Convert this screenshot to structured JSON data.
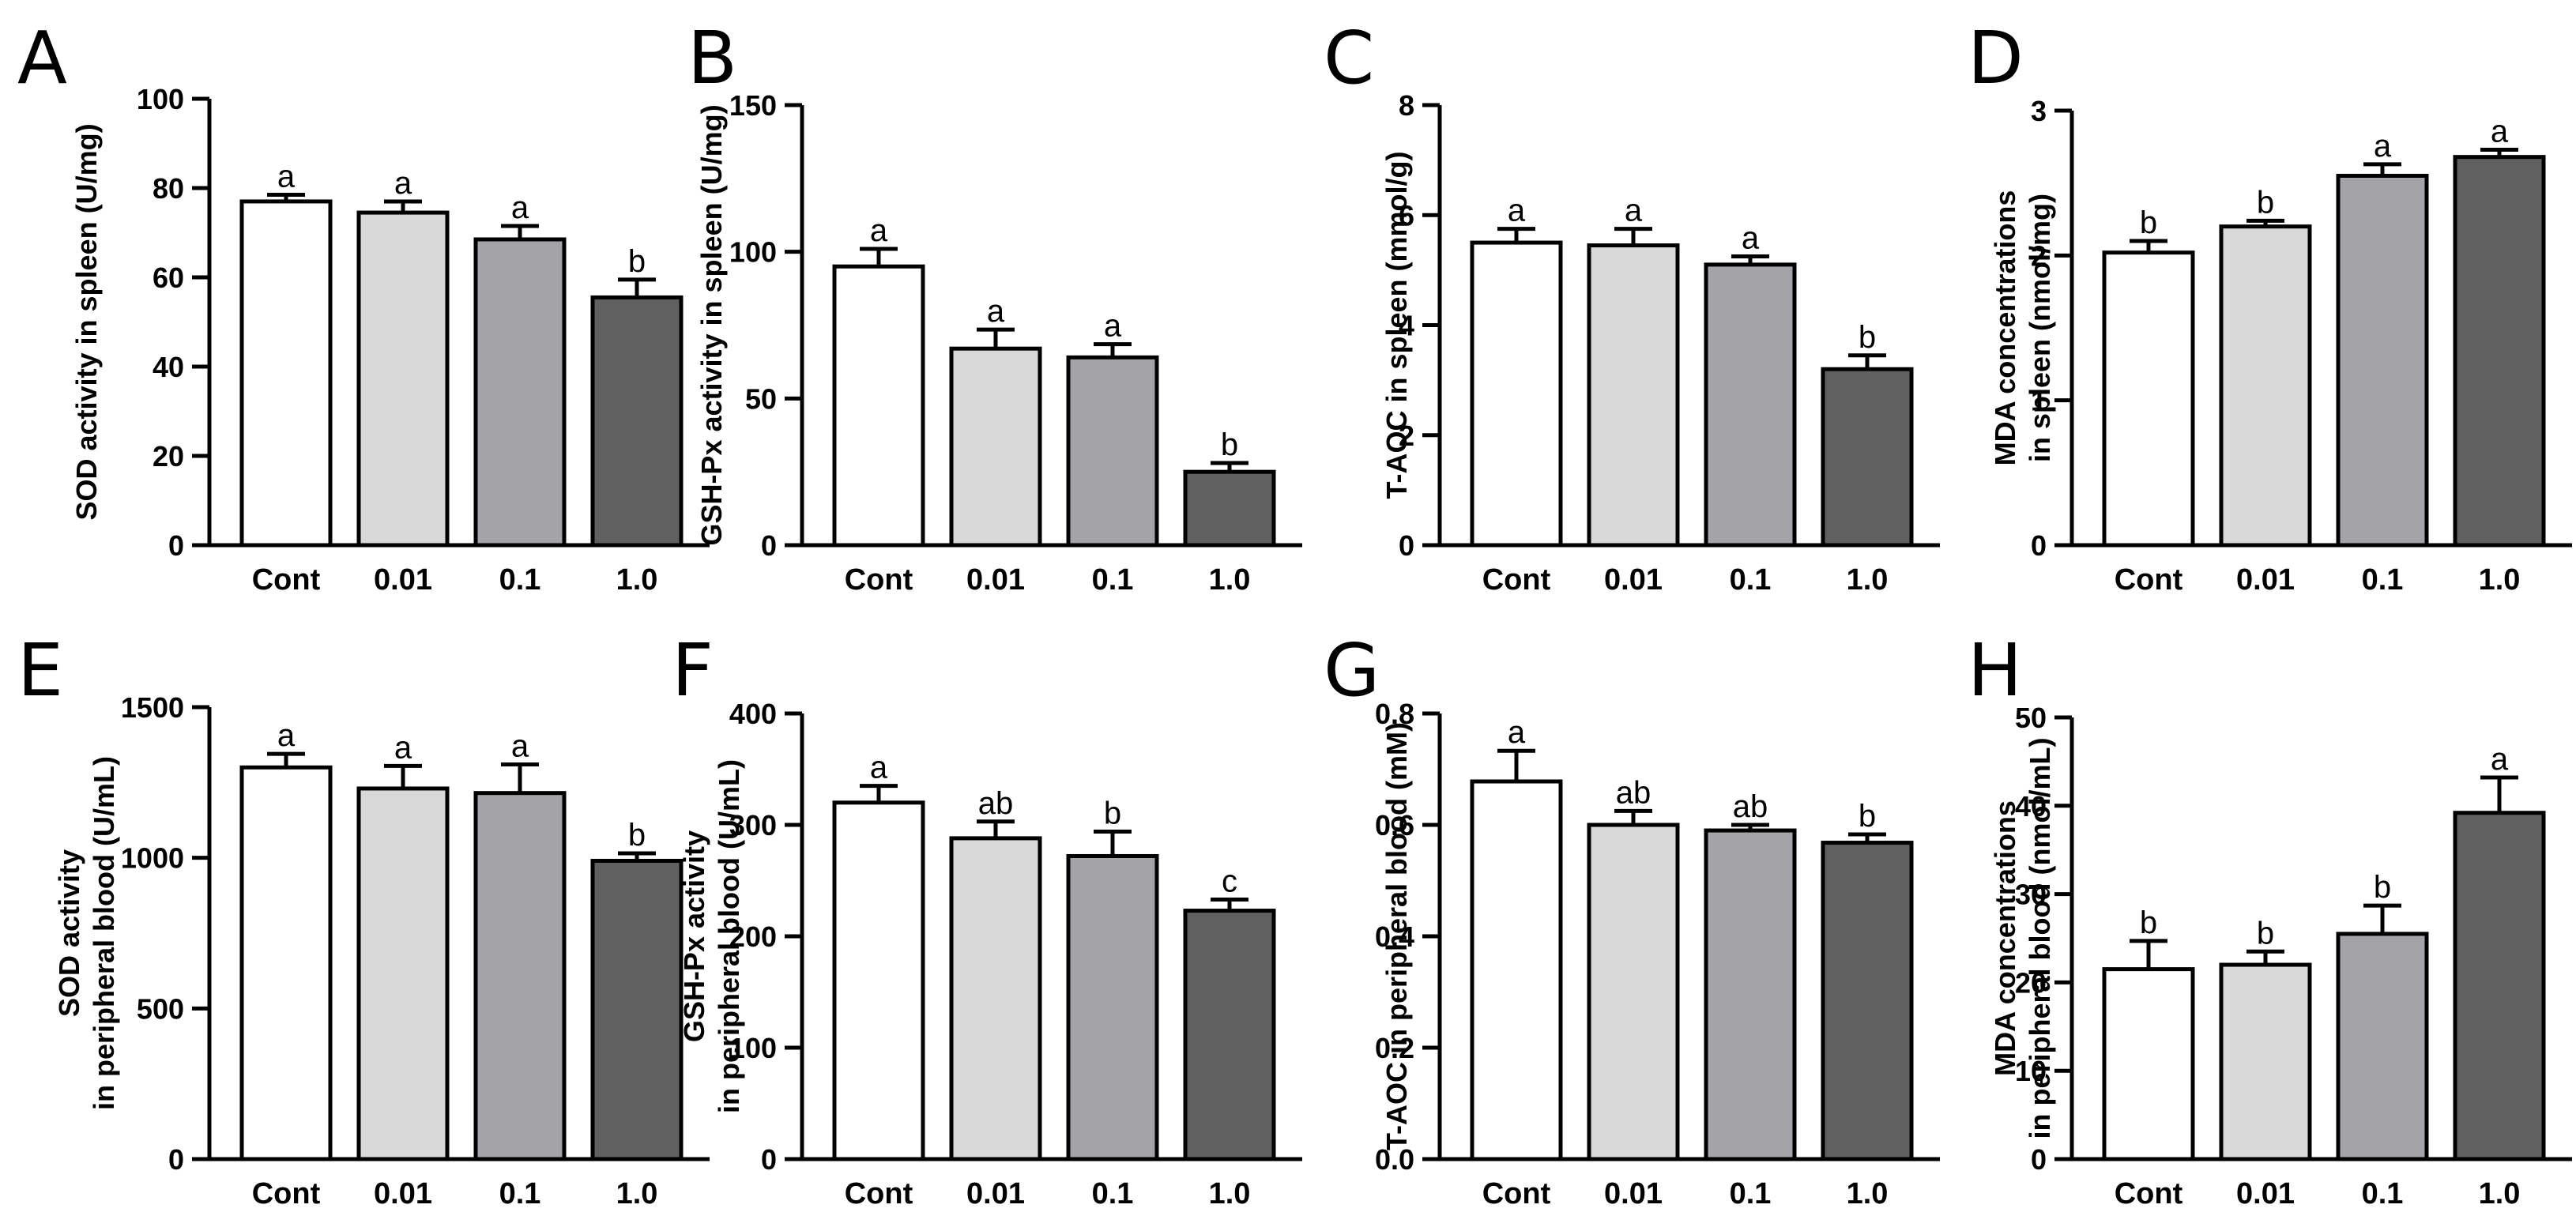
{
  "chart_data": [
    {
      "panel": "A",
      "type": "bar",
      "categories": [
        "Cont",
        "0.01",
        "0.1",
        "1.0"
      ],
      "values": [
        77,
        74.5,
        68.5,
        55.5
      ],
      "errors": [
        1.5,
        2.5,
        3.0,
        4.0
      ],
      "labels": [
        "a",
        "a",
        "a",
        "b"
      ],
      "ylabel": [
        "SOD activity in spleen (U/mg)"
      ],
      "ylim": [
        0,
        100
      ],
      "yticks": [
        0,
        20,
        40,
        60,
        80,
        100
      ],
      "tick_decimals": 0
    },
    {
      "panel": "B",
      "type": "bar",
      "categories": [
        "Cont",
        "0.01",
        "0.1",
        "1.0"
      ],
      "values": [
        95,
        67,
        64,
        25
      ],
      "errors": [
        6,
        6.5,
        4.5,
        3
      ],
      "labels": [
        "a",
        "a",
        "a",
        "b"
      ],
      "ylabel": [
        "GSH-Px activity in spleen (U/mg)"
      ],
      "ylim": [
        0,
        150
      ],
      "yticks": [
        0,
        50,
        100,
        150
      ],
      "tick_decimals": 0
    },
    {
      "panel": "C",
      "type": "bar",
      "categories": [
        "Cont",
        "0.01",
        "0.1",
        "1.0"
      ],
      "values": [
        5.5,
        5.45,
        5.1,
        3.2
      ],
      "errors": [
        0.25,
        0.3,
        0.15,
        0.25
      ],
      "labels": [
        "a",
        "a",
        "a",
        "b"
      ],
      "ylabel": [
        "T-AOC in spleen (mmol/g)"
      ],
      "ylim": [
        0,
        8
      ],
      "yticks": [
        0,
        2,
        4,
        6,
        8
      ],
      "tick_decimals": 0
    },
    {
      "panel": "D",
      "type": "bar",
      "categories": [
        "Cont",
        "0.01",
        "0.1",
        "1.0"
      ],
      "values": [
        2.02,
        2.2,
        2.55,
        2.68
      ],
      "errors": [
        0.08,
        0.04,
        0.08,
        0.05
      ],
      "labels": [
        "b",
        "b",
        "a",
        "a"
      ],
      "ylabel": [
        "MDA concentrations",
        "in spleen (nmol/mg)"
      ],
      "ylim": [
        0,
        3
      ],
      "yticks": [
        0,
        1,
        2,
        3
      ],
      "tick_decimals": 0
    },
    {
      "panel": "E",
      "type": "bar",
      "categories": [
        "Cont",
        "0.01",
        "0.1",
        "1.0"
      ],
      "values": [
        1300,
        1230,
        1215,
        990
      ],
      "errors": [
        45,
        75,
        95,
        25
      ],
      "labels": [
        "a",
        "a",
        "a",
        "b"
      ],
      "ylabel": [
        "SOD activity",
        "in peripheral blood (U/mL)"
      ],
      "ylim": [
        0,
        1500
      ],
      "yticks": [
        0,
        500,
        1000,
        1500
      ],
      "tick_decimals": 0
    },
    {
      "panel": "F",
      "type": "bar",
      "categories": [
        "Cont",
        "0.01",
        "0.1",
        "1.0"
      ],
      "values": [
        320,
        288,
        272,
        223
      ],
      "errors": [
        15,
        15,
        22,
        10
      ],
      "labels": [
        "a",
        "ab",
        "b",
        "c"
      ],
      "ylabel": [
        "GSH-Px activity",
        "in peripheral blood (U/mL)"
      ],
      "ylim": [
        0,
        400
      ],
      "yticks": [
        0,
        100,
        200,
        300,
        400
      ],
      "tick_decimals": 0
    },
    {
      "panel": "G",
      "type": "bar",
      "categories": [
        "Cont",
        "0.01",
        "0.1",
        "1.0"
      ],
      "values": [
        0.678,
        0.6,
        0.59,
        0.568
      ],
      "errors": [
        0.055,
        0.025,
        0.01,
        0.015
      ],
      "labels": [
        "a",
        "ab",
        "ab",
        "b"
      ],
      "ylabel": [
        "T-AOC in peripheral blood (mM)"
      ],
      "ylim": [
        0,
        0.8
      ],
      "yticks": [
        0,
        0.2,
        0.4,
        0.6,
        0.8
      ],
      "tick_decimals": 1
    },
    {
      "panel": "H",
      "type": "bar",
      "categories": [
        "Cont",
        "0.01",
        "0.1",
        "1.0"
      ],
      "values": [
        21.5,
        22,
        25.5,
        39.2
      ],
      "errors": [
        3.2,
        1.5,
        3.2,
        4
      ],
      "labels": [
        "b",
        "b",
        "b",
        "a"
      ],
      "ylabel": [
        "MDA concentrations",
        "in peripheral blood (nmol/mL)"
      ],
      "ylim": [
        0,
        50
      ],
      "yticks": [
        0,
        10,
        20,
        30,
        40,
        50
      ],
      "tick_decimals": 0
    }
  ],
  "bar_colors": [
    "#ffffff",
    "#d8d8d8",
    "#a4a4a8",
    "#606060"
  ]
}
